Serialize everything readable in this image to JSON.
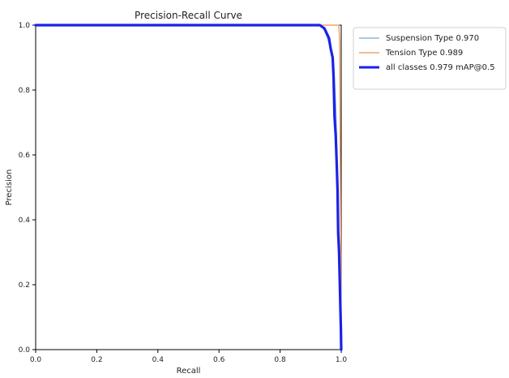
{
  "chart_data": {
    "type": "line",
    "title": "Precision-Recall Curve",
    "xlabel": "Recall",
    "ylabel": "Precision",
    "xlim": [
      0.0,
      1.0
    ],
    "ylim": [
      0.0,
      1.0
    ],
    "x_ticks": [
      "0.0",
      "0.2",
      "0.4",
      "0.6",
      "0.8",
      "1.0"
    ],
    "y_ticks": [
      "0.0",
      "0.2",
      "0.4",
      "0.6",
      "0.8",
      "1.0"
    ],
    "grid": false,
    "legend_position": "outside-right-top",
    "series": [
      {
        "name": "Suspension Type 0.970",
        "color": "#8fb6d9",
        "points": [
          [
            0.0,
            1.0
          ],
          [
            0.35,
            1.0
          ],
          [
            0.93,
            1.0
          ],
          [
            0.945,
            0.985
          ],
          [
            0.955,
            0.96
          ],
          [
            0.965,
            0.93
          ],
          [
            0.975,
            0.88
          ],
          [
            0.982,
            0.75
          ],
          [
            0.987,
            0.55
          ],
          [
            0.992,
            0.3
          ],
          [
            0.997,
            0.12
          ],
          [
            1.0,
            0.0
          ]
        ]
      },
      {
        "name": "Tension Type 0.989",
        "color": "#f0a36a",
        "points": [
          [
            0.0,
            1.0
          ],
          [
            0.4,
            1.0
          ],
          [
            0.8,
            1.0
          ],
          [
            0.955,
            1.0
          ],
          [
            0.992,
            1.0
          ],
          [
            0.995,
            0.95
          ],
          [
            0.997,
            0.55
          ],
          [
            0.999,
            0.2
          ],
          [
            1.0,
            0.0
          ]
        ]
      },
      {
        "name": "all classes 0.979 mAP@0.5",
        "color": "#1a22e8",
        "points": [
          [
            0.0,
            1.0
          ],
          [
            0.35,
            1.0
          ],
          [
            0.93,
            1.0
          ],
          [
            0.945,
            0.99
          ],
          [
            0.955,
            0.97
          ],
          [
            0.96,
            0.96
          ],
          [
            0.965,
            0.93
          ],
          [
            0.972,
            0.9
          ],
          [
            0.975,
            0.84
          ],
          [
            0.978,
            0.72
          ],
          [
            0.982,
            0.66
          ],
          [
            0.985,
            0.58
          ],
          [
            0.988,
            0.49
          ],
          [
            0.99,
            0.36
          ],
          [
            0.993,
            0.3
          ],
          [
            0.996,
            0.18
          ],
          [
            0.999,
            0.06
          ],
          [
            1.0,
            0.0
          ]
        ]
      }
    ]
  }
}
